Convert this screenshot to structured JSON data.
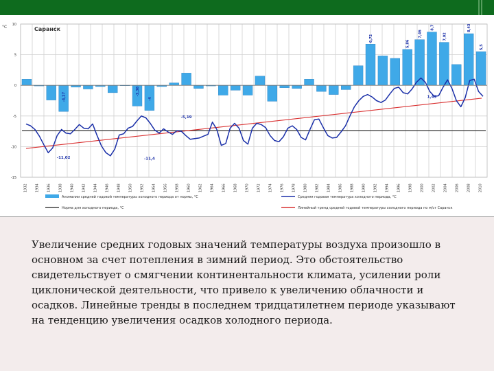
{
  "slide": {
    "caption": " Увеличение средних годовых значений температуры воздуха произошло в основном за счет потепления в зимний период. Это обстоятельство свидетельствует о смягчении континентальности климата, усилении роли циклонической деятельности, что привело к увеличению облачности и осадков. Линейные тренды в последнем тридцатилетнем периоде указывают на тенденцию увеличения осадков холодного периода.",
    "colors": {
      "header": "#0e6b1e",
      "background": "#f3ecec"
    }
  },
  "chart_data": {
    "type": "bar",
    "title": "Саранск",
    "ylabel": "°С",
    "ylim": [
      -15,
      10
    ],
    "yticks": [
      10,
      5,
      0,
      -5,
      -10,
      -15
    ],
    "xticks": [
      "1932",
      "1934",
      "1936",
      "1938",
      "1940",
      "1942",
      "1944",
      "1946",
      "1948",
      "1950",
      "1952",
      "1954",
      "1956",
      "1958",
      "1960",
      "1962",
      "1964",
      "1966",
      "1968",
      "1970",
      "1972",
      "1974",
      "1976",
      "1978",
      "1980",
      "1982",
      "1984",
      "1986",
      "1988",
      "1990",
      "1992",
      "1994",
      "1996",
      "1998",
      "2000",
      "2002",
      "2004",
      "2006",
      "2008",
      "2010"
    ],
    "grid": true,
    "legend_position": "bottom",
    "legend": [
      "Аномалии средней годовой температуры холодного периода от нормы, °С",
      "Средняя годовая температура холодного периода, °С",
      "Норма для холодного периода, °С",
      "Линейный тренд средней годовой температуры холодного периода по м/ст Саранск"
    ],
    "bar_series": {
      "values": [
        1.0,
        -0.1,
        -2.4,
        -4.27,
        -0.3,
        -0.6,
        -0.2,
        -1.2,
        0.0,
        -3.38,
        -4.1,
        -0.2,
        0.4,
        2.0,
        -0.5,
        -0.1,
        -1.6,
        -0.8,
        -1.6,
        1.5,
        -2.6,
        -0.4,
        -0.5,
        1.0,
        -1.0,
        -1.5,
        -0.7,
        3.2,
        6.72,
        4.8,
        4.4,
        5.86,
        7.46,
        8.7,
        7.02,
        3.4,
        8.43,
        5.5
      ],
      "color": "#3fa9e8"
    },
    "mean_series": {
      "values": [
        -6.3,
        -6.6,
        -7.2,
        -8.3,
        -9.7,
        -11.0,
        -10.2,
        -8.2,
        -7.2,
        -7.8,
        -7.9,
        -7.2,
        -6.4,
        -7.0,
        -7.1,
        -6.3,
        -8.2,
        -9.9,
        -11.0,
        -11.5,
        -10.4,
        -8.1,
        -7.9,
        -7.0,
        -6.7,
        -5.8,
        -5.0,
        -5.3,
        -6.2,
        -7.3,
        -7.8,
        -7.1,
        -7.6,
        -8.0,
        -7.4,
        -7.5,
        -8.2,
        -8.8,
        -8.7,
        -8.6,
        -8.3,
        -8.0,
        -6.0,
        -7.2,
        -9.8,
        -9.5,
        -7.0,
        -6.2,
        -7.0,
        -9.0,
        -9.6,
        -7.0,
        -6.2,
        -6.4,
        -6.9,
        -8.2,
        -9.0,
        -9.2,
        -8.4,
        -7.0,
        -6.6,
        -7.2,
        -8.5,
        -8.9,
        -7.2,
        -5.6,
        -5.5,
        -6.9,
        -8.2,
        -8.6,
        -8.5,
        -7.6,
        -6.6,
        -5.0,
        -3.5,
        -2.5,
        -1.8,
        -1.5,
        -1.9,
        -2.5,
        -2.8,
        -2.4,
        -1.4,
        -0.5,
        -0.3,
        -1.2,
        -1.4,
        -0.6,
        0.5,
        1.2,
        0.5,
        -1.0,
        -1.8,
        -1.7,
        -0.3,
        0.9,
        -0.5,
        -2.5,
        -3.5,
        -2.0,
        0.8,
        1.0,
        -1.0,
        -1.8
      ],
      "color": "#1a2fa8"
    },
    "norm_series": {
      "value": -7.4,
      "color": "#404040"
    },
    "trend_series": {
      "start": -10.3,
      "end": -2.1,
      "color": "#d93030"
    },
    "annotations": [
      {
        "text": "-4,27",
        "x": 3,
        "y": -4.27
      },
      {
        "text": "-3,38",
        "x": 9,
        "y": -3.38
      },
      {
        "text": "-4",
        "x": 10,
        "y": -4.1
      },
      {
        "text": "-5,19",
        "x": 13,
        "y": -4.9
      },
      {
        "text": "-11,02",
        "x": 3,
        "y": -11.5
      },
      {
        "text": "-11,4",
        "x": 10,
        "y": -11.7
      },
      {
        "text": "1,43",
        "x": 33,
        "y": -1.6
      },
      {
        "text": "6,72",
        "x": 28,
        "y": 6.72
      },
      {
        "text": "5,86",
        "x": 31,
        "y": 5.86
      },
      {
        "text": "7,46",
        "x": 32,
        "y": 7.46
      },
      {
        "text": "8,7",
        "x": 33,
        "y": 8.7
      },
      {
        "text": "7,02",
        "x": 34,
        "y": 7.02
      },
      {
        "text": "8,43",
        "x": 36,
        "y": 8.43
      },
      {
        "text": "5,5",
        "x": 37,
        "y": 5.5
      }
    ]
  }
}
